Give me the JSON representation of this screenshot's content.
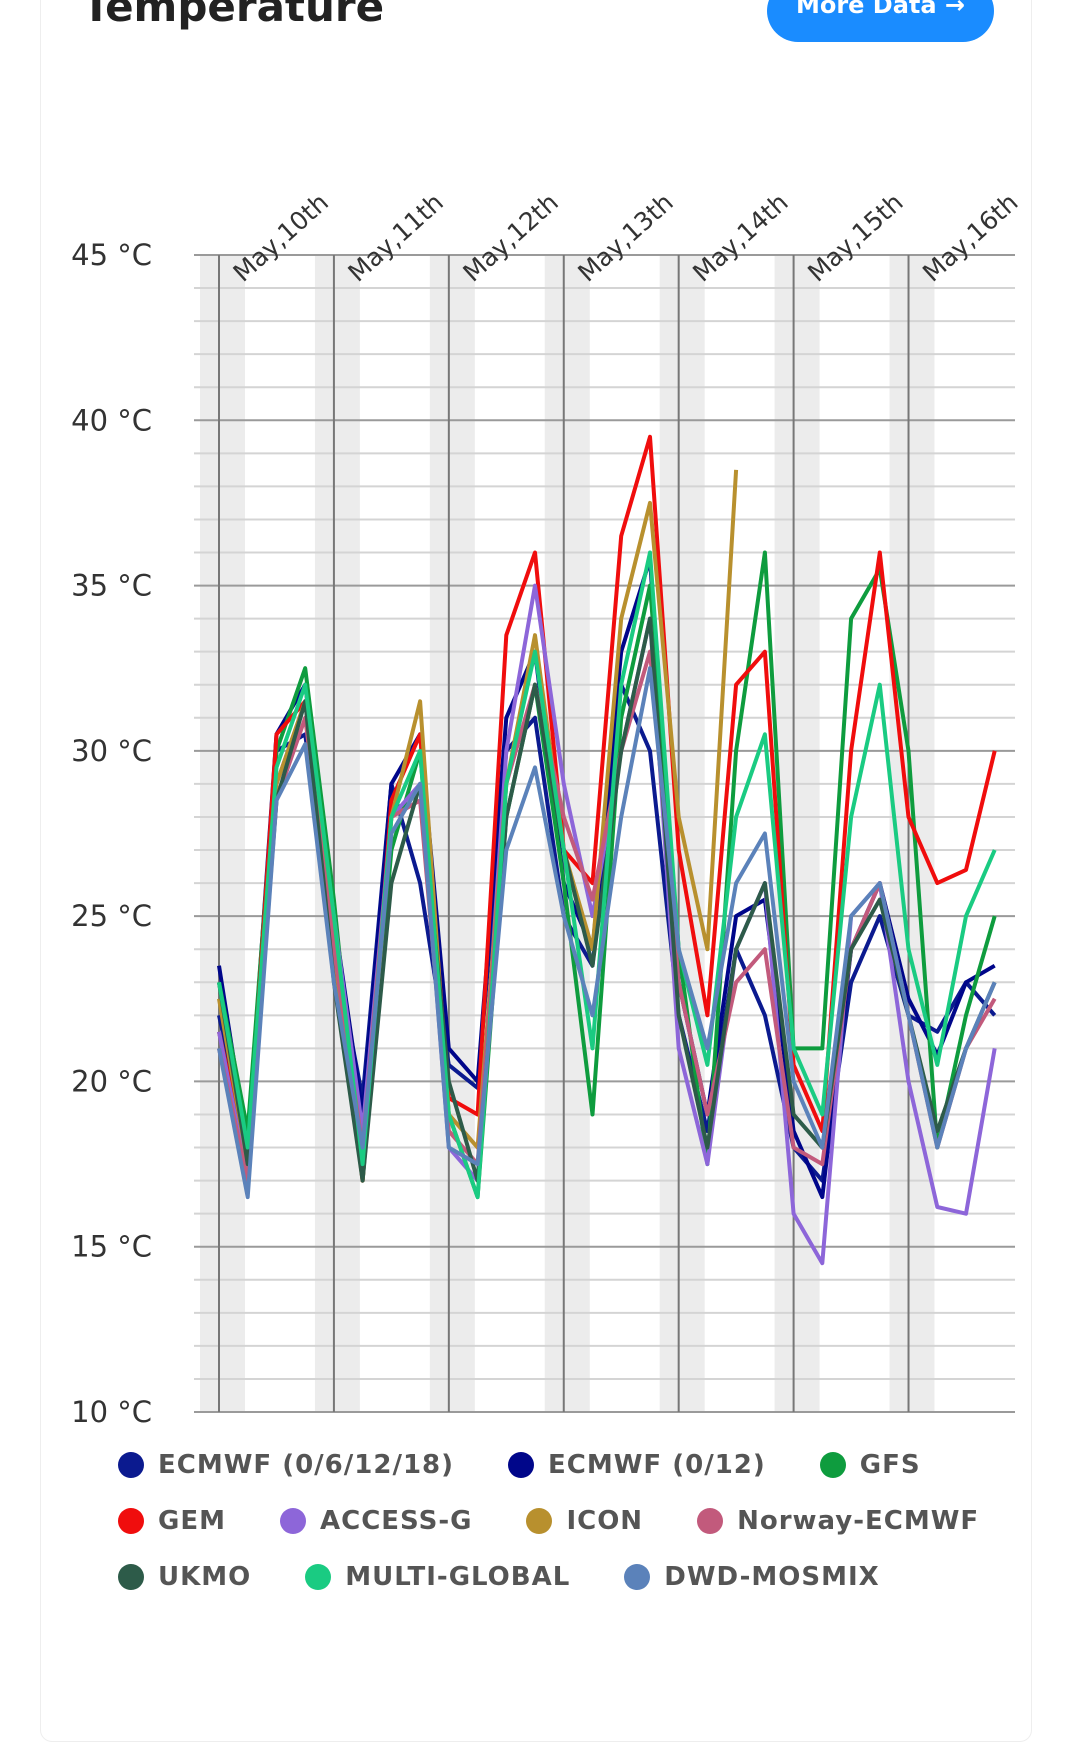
{
  "header": {
    "title": "Temperature",
    "button": "More Data →"
  },
  "chart_data": {
    "type": "line",
    "categories": [
      "May,10th",
      null,
      null,
      null,
      "May,11th",
      null,
      null,
      null,
      "May,12th",
      null,
      null,
      null,
      "May,13th",
      null,
      null,
      null,
      "May,14th",
      null,
      null,
      null,
      "May,15th",
      null,
      null,
      null,
      "May,16th",
      null,
      null,
      null
    ],
    "ylim": [
      10,
      45
    ],
    "yticks": [
      {
        "value": 10,
        "label": "10 °C"
      },
      {
        "value": 15,
        "label": "15 °C"
      },
      {
        "value": 20,
        "label": "20 °C"
      },
      {
        "value": 25,
        "label": "25 °C"
      },
      {
        "value": 30,
        "label": "30 °C"
      },
      {
        "value": 35,
        "label": "35 °C"
      },
      {
        "value": 40,
        "label": "40 °C"
      },
      {
        "value": 45,
        "label": "45 °C"
      }
    ],
    "yminorticks": [
      11,
      12,
      13,
      14,
      16,
      17,
      18,
      19,
      21,
      22,
      23,
      24,
      26,
      27,
      28,
      29,
      31,
      32,
      33,
      34,
      36,
      37,
      38,
      39,
      41,
      42,
      43,
      44
    ],
    "grid": true,
    "series": [
      {
        "name": "ECMWF (0/6/12/18)",
        "color": "#0b1a8f",
        "values": [
          22,
          18,
          30,
          30.5,
          24,
          19.5,
          29,
          26,
          20.5,
          19.8,
          30,
          31,
          25,
          23.5,
          32,
          30,
          22,
          18.5,
          24,
          22,
          18,
          17,
          23,
          25,
          22,
          21.5,
          23,
          22
        ]
      },
      {
        "name": "ECMWF (0/12)",
        "color": "#00068a",
        "values": [
          23.5,
          18,
          30.5,
          32,
          25,
          19,
          29,
          30.5,
          21,
          20,
          31,
          33,
          26,
          24,
          33,
          35.8,
          23,
          19,
          25,
          25.5,
          18.5,
          16.5,
          24,
          26,
          22.5,
          20.8,
          23,
          23.5
        ]
      },
      {
        "name": "GFS",
        "color": "#0e9c3e",
        "values": [
          23,
          18.5,
          30,
          32.5,
          25.5,
          17,
          27,
          30,
          19,
          16.5,
          28,
          32,
          26,
          19,
          31,
          35,
          24,
          17.5,
          30,
          36,
          21,
          21,
          34,
          35.5,
          30,
          18,
          22,
          25
        ]
      },
      {
        "name": "GEM",
        "color": "#f00d0d",
        "values": [
          21.5,
          17.5,
          30.5,
          31.5,
          24,
          17,
          28.5,
          30.5,
          19.5,
          19,
          33.5,
          36,
          27,
          26,
          36.5,
          39.5,
          27,
          22,
          32,
          33,
          20.5,
          18.5,
          30,
          36,
          28,
          26,
          26.4,
          30
        ]
      },
      {
        "name": "ACCESS-G",
        "color": "#8d66d9",
        "values": [
          21.5,
          17,
          29,
          31.5,
          25,
          18.5,
          28,
          29,
          18,
          17,
          30,
          35,
          29,
          25,
          30,
          34,
          21,
          17.5,
          24,
          26,
          16,
          14.5,
          25,
          26,
          20,
          16.2,
          16,
          21
        ]
      },
      {
        "name": "ICON",
        "color": "#b8902e",
        "values": [
          22.5,
          17.5,
          29,
          31.5,
          24,
          17,
          28,
          31.5,
          19,
          18,
          29,
          33.5,
          27,
          24,
          34,
          37.5,
          28,
          24,
          38.5,
          null,
          null,
          null,
          null,
          null,
          null,
          null,
          null,
          null
        ]
      },
      {
        "name": "Norway-ECMWF",
        "color": "#c25a7c",
        "values": [
          21,
          17,
          28.5,
          31,
          24,
          18,
          28,
          28.5,
          18.5,
          17.5,
          29,
          32,
          28,
          25.5,
          30,
          33,
          23,
          19,
          23,
          24,
          18,
          17.5,
          24,
          26,
          22,
          18,
          21,
          22.5
        ]
      },
      {
        "name": "UKMO",
        "color": "#2d5b49",
        "values": [
          23,
          17.5,
          28.5,
          31.5,
          23,
          17,
          26,
          29,
          20,
          17,
          28,
          32,
          27,
          23.5,
          30,
          34,
          22,
          18,
          24,
          26,
          19,
          18,
          24,
          25.5,
          22,
          18.5,
          21,
          23
        ]
      },
      {
        "name": "MULTI-GLOBAL",
        "color": "#1acb82",
        "values": [
          23,
          18,
          29.5,
          32,
          25,
          17.5,
          28,
          30,
          19,
          16.5,
          29,
          33,
          27,
          21,
          32,
          36,
          24,
          20.5,
          28,
          30.5,
          21,
          19,
          28,
          32,
          24,
          20.5,
          25,
          27
        ]
      },
      {
        "name": "DWD-MOSMIX",
        "color": "#5b82ba",
        "values": [
          21,
          16.5,
          28.5,
          30.2,
          23,
          18,
          27.5,
          29,
          18,
          17.5,
          27,
          29.5,
          25,
          22,
          28,
          32.5,
          24,
          21,
          26,
          27.5,
          20,
          18,
          25,
          26,
          22,
          18,
          21,
          23
        ]
      }
    ]
  }
}
